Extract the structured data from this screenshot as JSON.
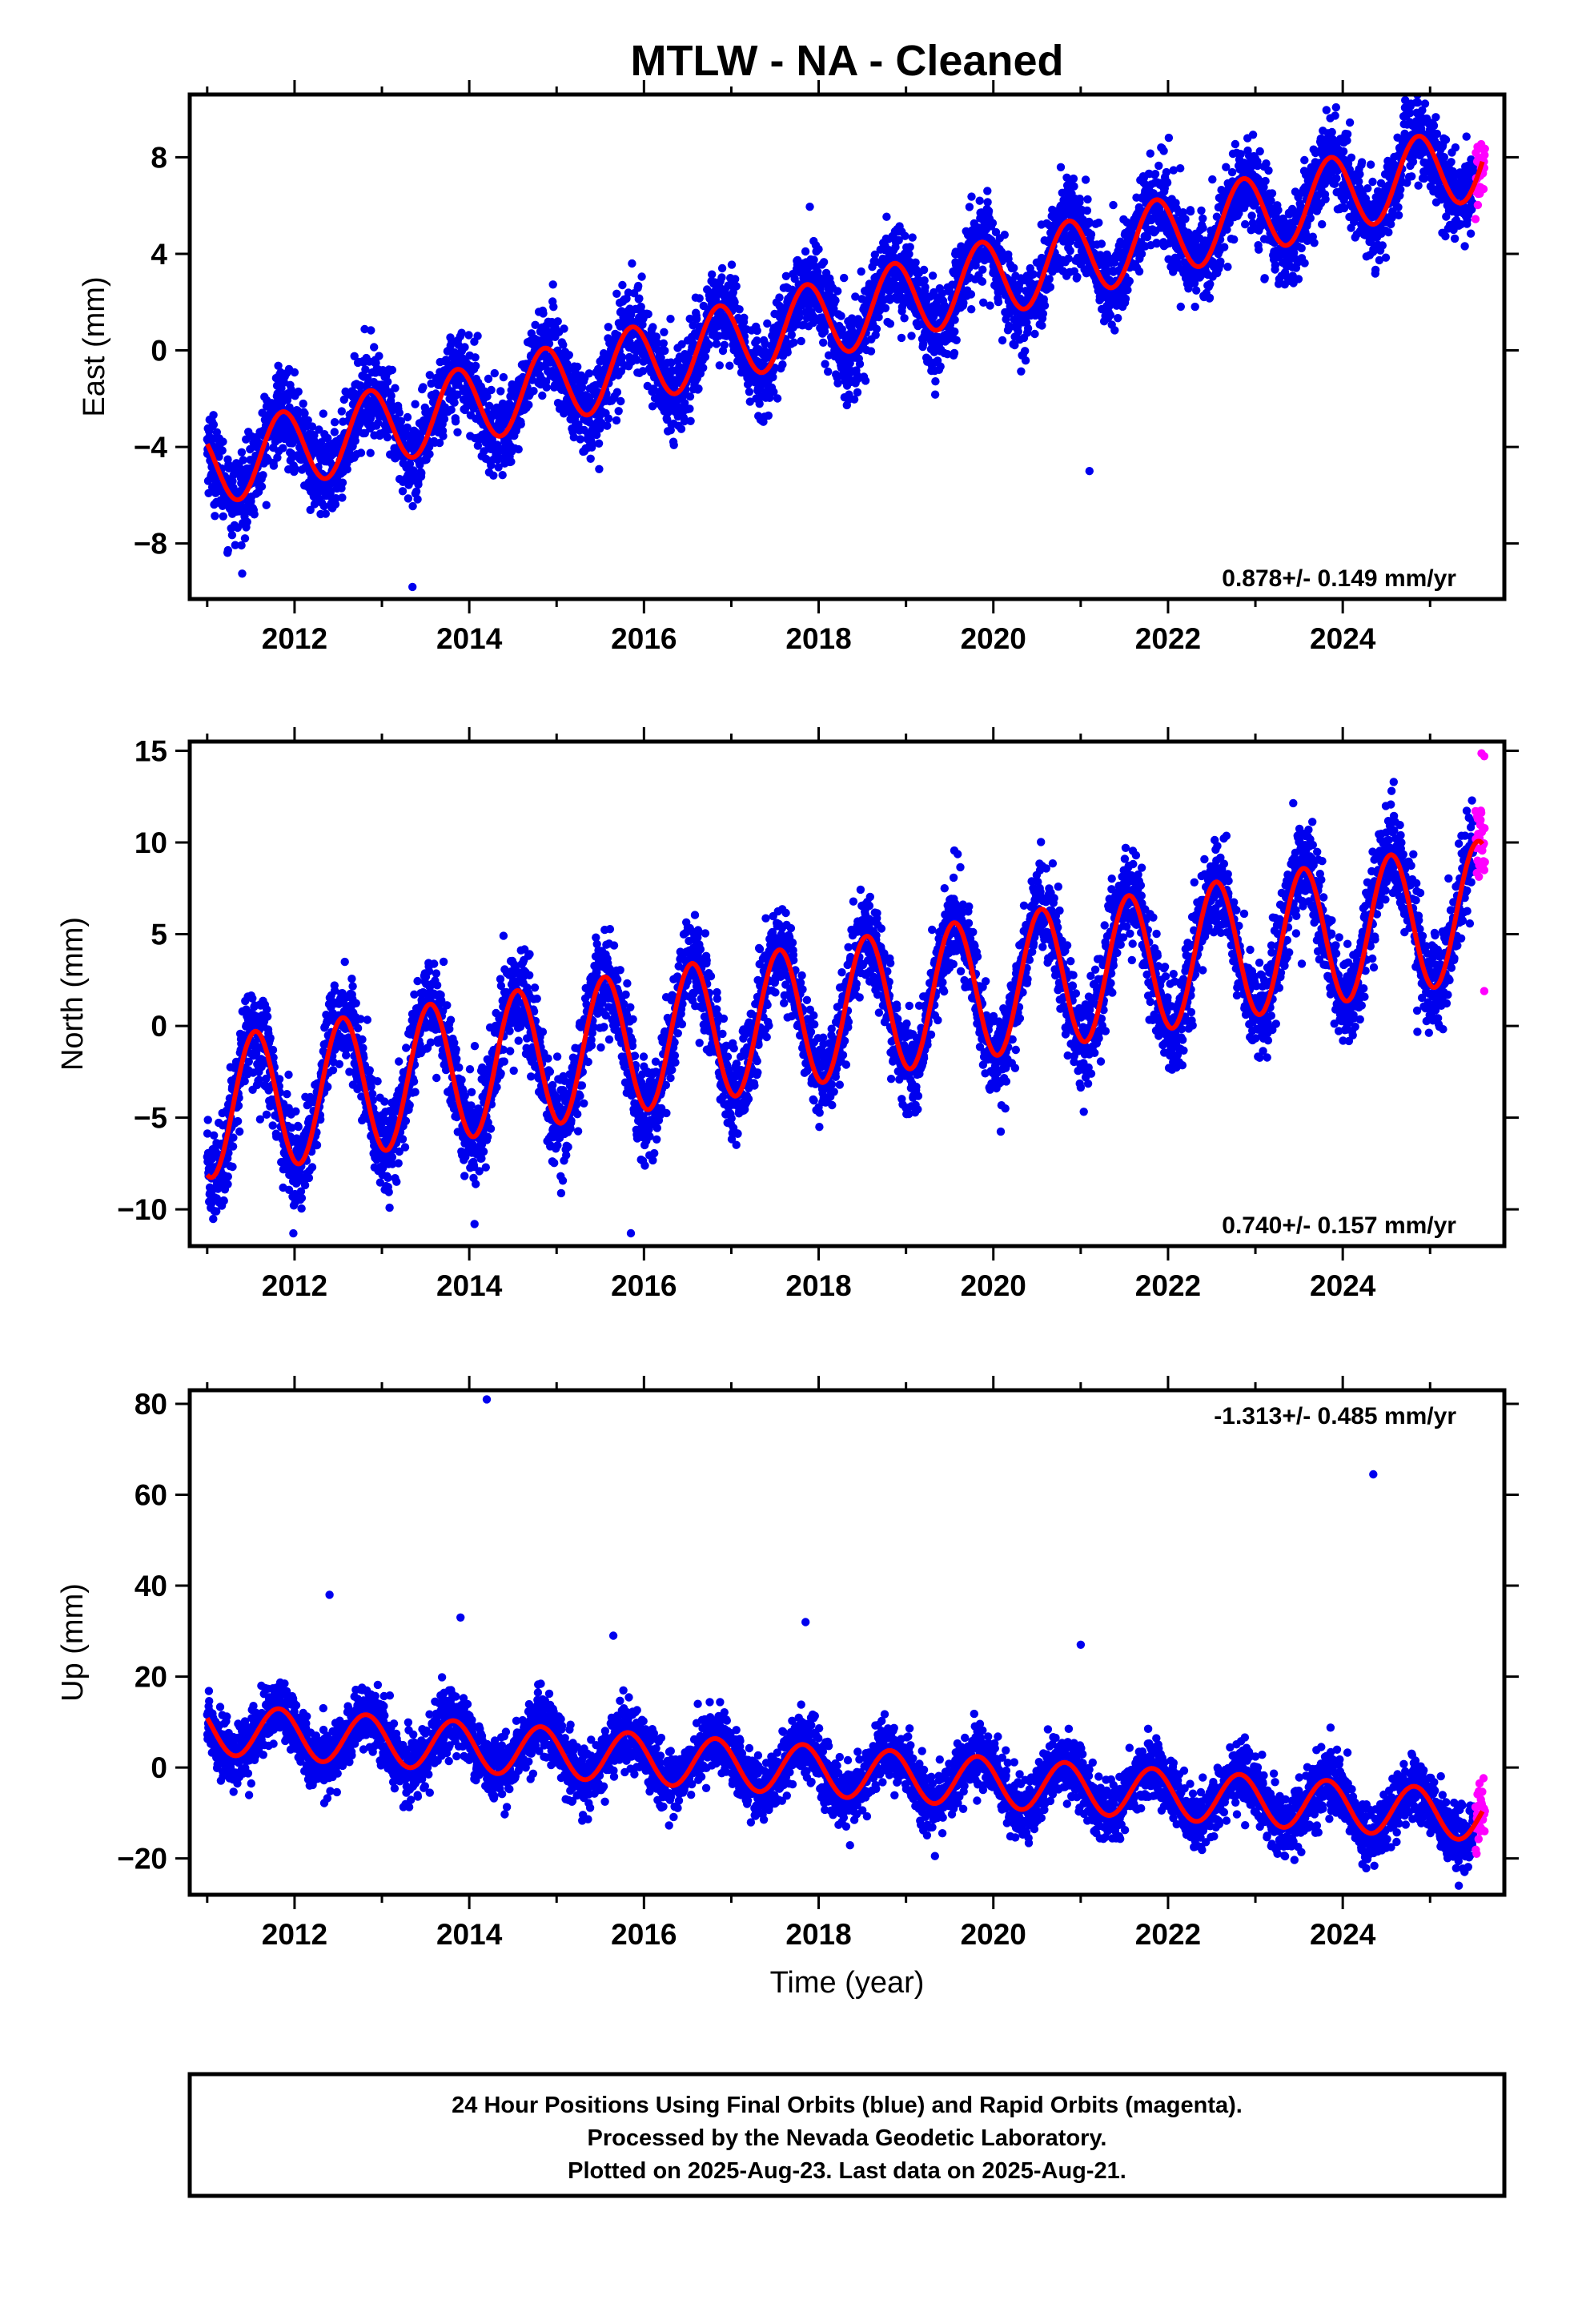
{
  "title": "MTLW  - NA - Cleaned",
  "xlabel": "Time (year)",
  "x_ticks": [
    "2012",
    "2014",
    "2016",
    "2018",
    "2020",
    "2022",
    "2024"
  ],
  "footer": [
    "24 Hour Positions Using Final Orbits (blue) and Rapid Orbits (magenta).",
    "Processed by the Nevada Geodetic Laboratory.",
    "Plotted on 2025-Aug-23. Last data on 2025-Aug-21."
  ],
  "colors": {
    "final": "#0000ee",
    "rapid": "#ff00ff",
    "model": "#ff0000",
    "frame": "#000000"
  },
  "chart_data": [
    {
      "type": "scatter",
      "ylabel": "East (mm)",
      "xlim": [
        2010.8,
        2025.85
      ],
      "ylim": [
        -10.3,
        10.6
      ],
      "yticks": [
        -8,
        -4,
        0,
        4,
        8
      ],
      "rate_text": "0.878+/- 0.149 mm/yr",
      "rate_position": "bottom-right",
      "model": {
        "mean_at_2011": -4.9,
        "rate": 0.878,
        "annual_amplitude": 1.6,
        "annual_peak_phase": 0.86
      },
      "final_orbits_range": [
        "2011.0",
        "2025.5"
      ],
      "rapid_orbits_range": [
        "2025.52",
        "2025.63"
      ],
      "outliers": [
        [
          2021.1,
          -5.0
        ],
        [
          2013.35,
          -9.8
        ]
      ]
    },
    {
      "type": "scatter",
      "ylabel": "North (mm)",
      "xlim": [
        2010.8,
        2025.85
      ],
      "ylim": [
        -12,
        15.5
      ],
      "yticks": [
        -10,
        -5,
        0,
        5,
        10,
        15
      ],
      "rate_text": "0.740+/- 0.157 mm/yr",
      "rate_position": "bottom-right",
      "model": {
        "mean_at_2011": -4.5,
        "rate": 0.74,
        "annual_amplitude": 3.8,
        "annual_peak_phase": 0.55
      },
      "final_orbits_range": [
        "2011.0",
        "2025.5"
      ],
      "rapid_orbits_range": [
        "2025.52",
        "2025.63"
      ],
      "outliers": [
        [
          2015.85,
          -11.3
        ],
        [
          2025.62,
          14.7
        ],
        [
          2025.62,
          1.9
        ]
      ]
    },
    {
      "type": "scatter",
      "ylabel": "Up (mm)",
      "xlim": [
        2010.8,
        2025.85
      ],
      "ylim": [
        -28,
        83
      ],
      "yticks": [
        -20,
        0,
        20,
        40,
        60,
        80
      ],
      "rate_text": "-1.313+/- 0.485 mm/yr",
      "rate_position": "top-right",
      "model": {
        "mean_at_2011": 8.5,
        "rate": -1.313,
        "annual_amplitude": 5.5,
        "annual_peak_phase": 0.82
      },
      "final_orbits_range": [
        "2011.0",
        "2025.5"
      ],
      "rapid_orbits_range": [
        "2025.52",
        "2025.63"
      ],
      "outliers": [
        [
          2014.2,
          81
        ],
        [
          2024.35,
          64.5
        ],
        [
          2012.4,
          38
        ],
        [
          2013.9,
          33
        ],
        [
          2017.85,
          32
        ],
        [
          2015.65,
          29
        ],
        [
          2021.0,
          27
        ]
      ]
    }
  ]
}
